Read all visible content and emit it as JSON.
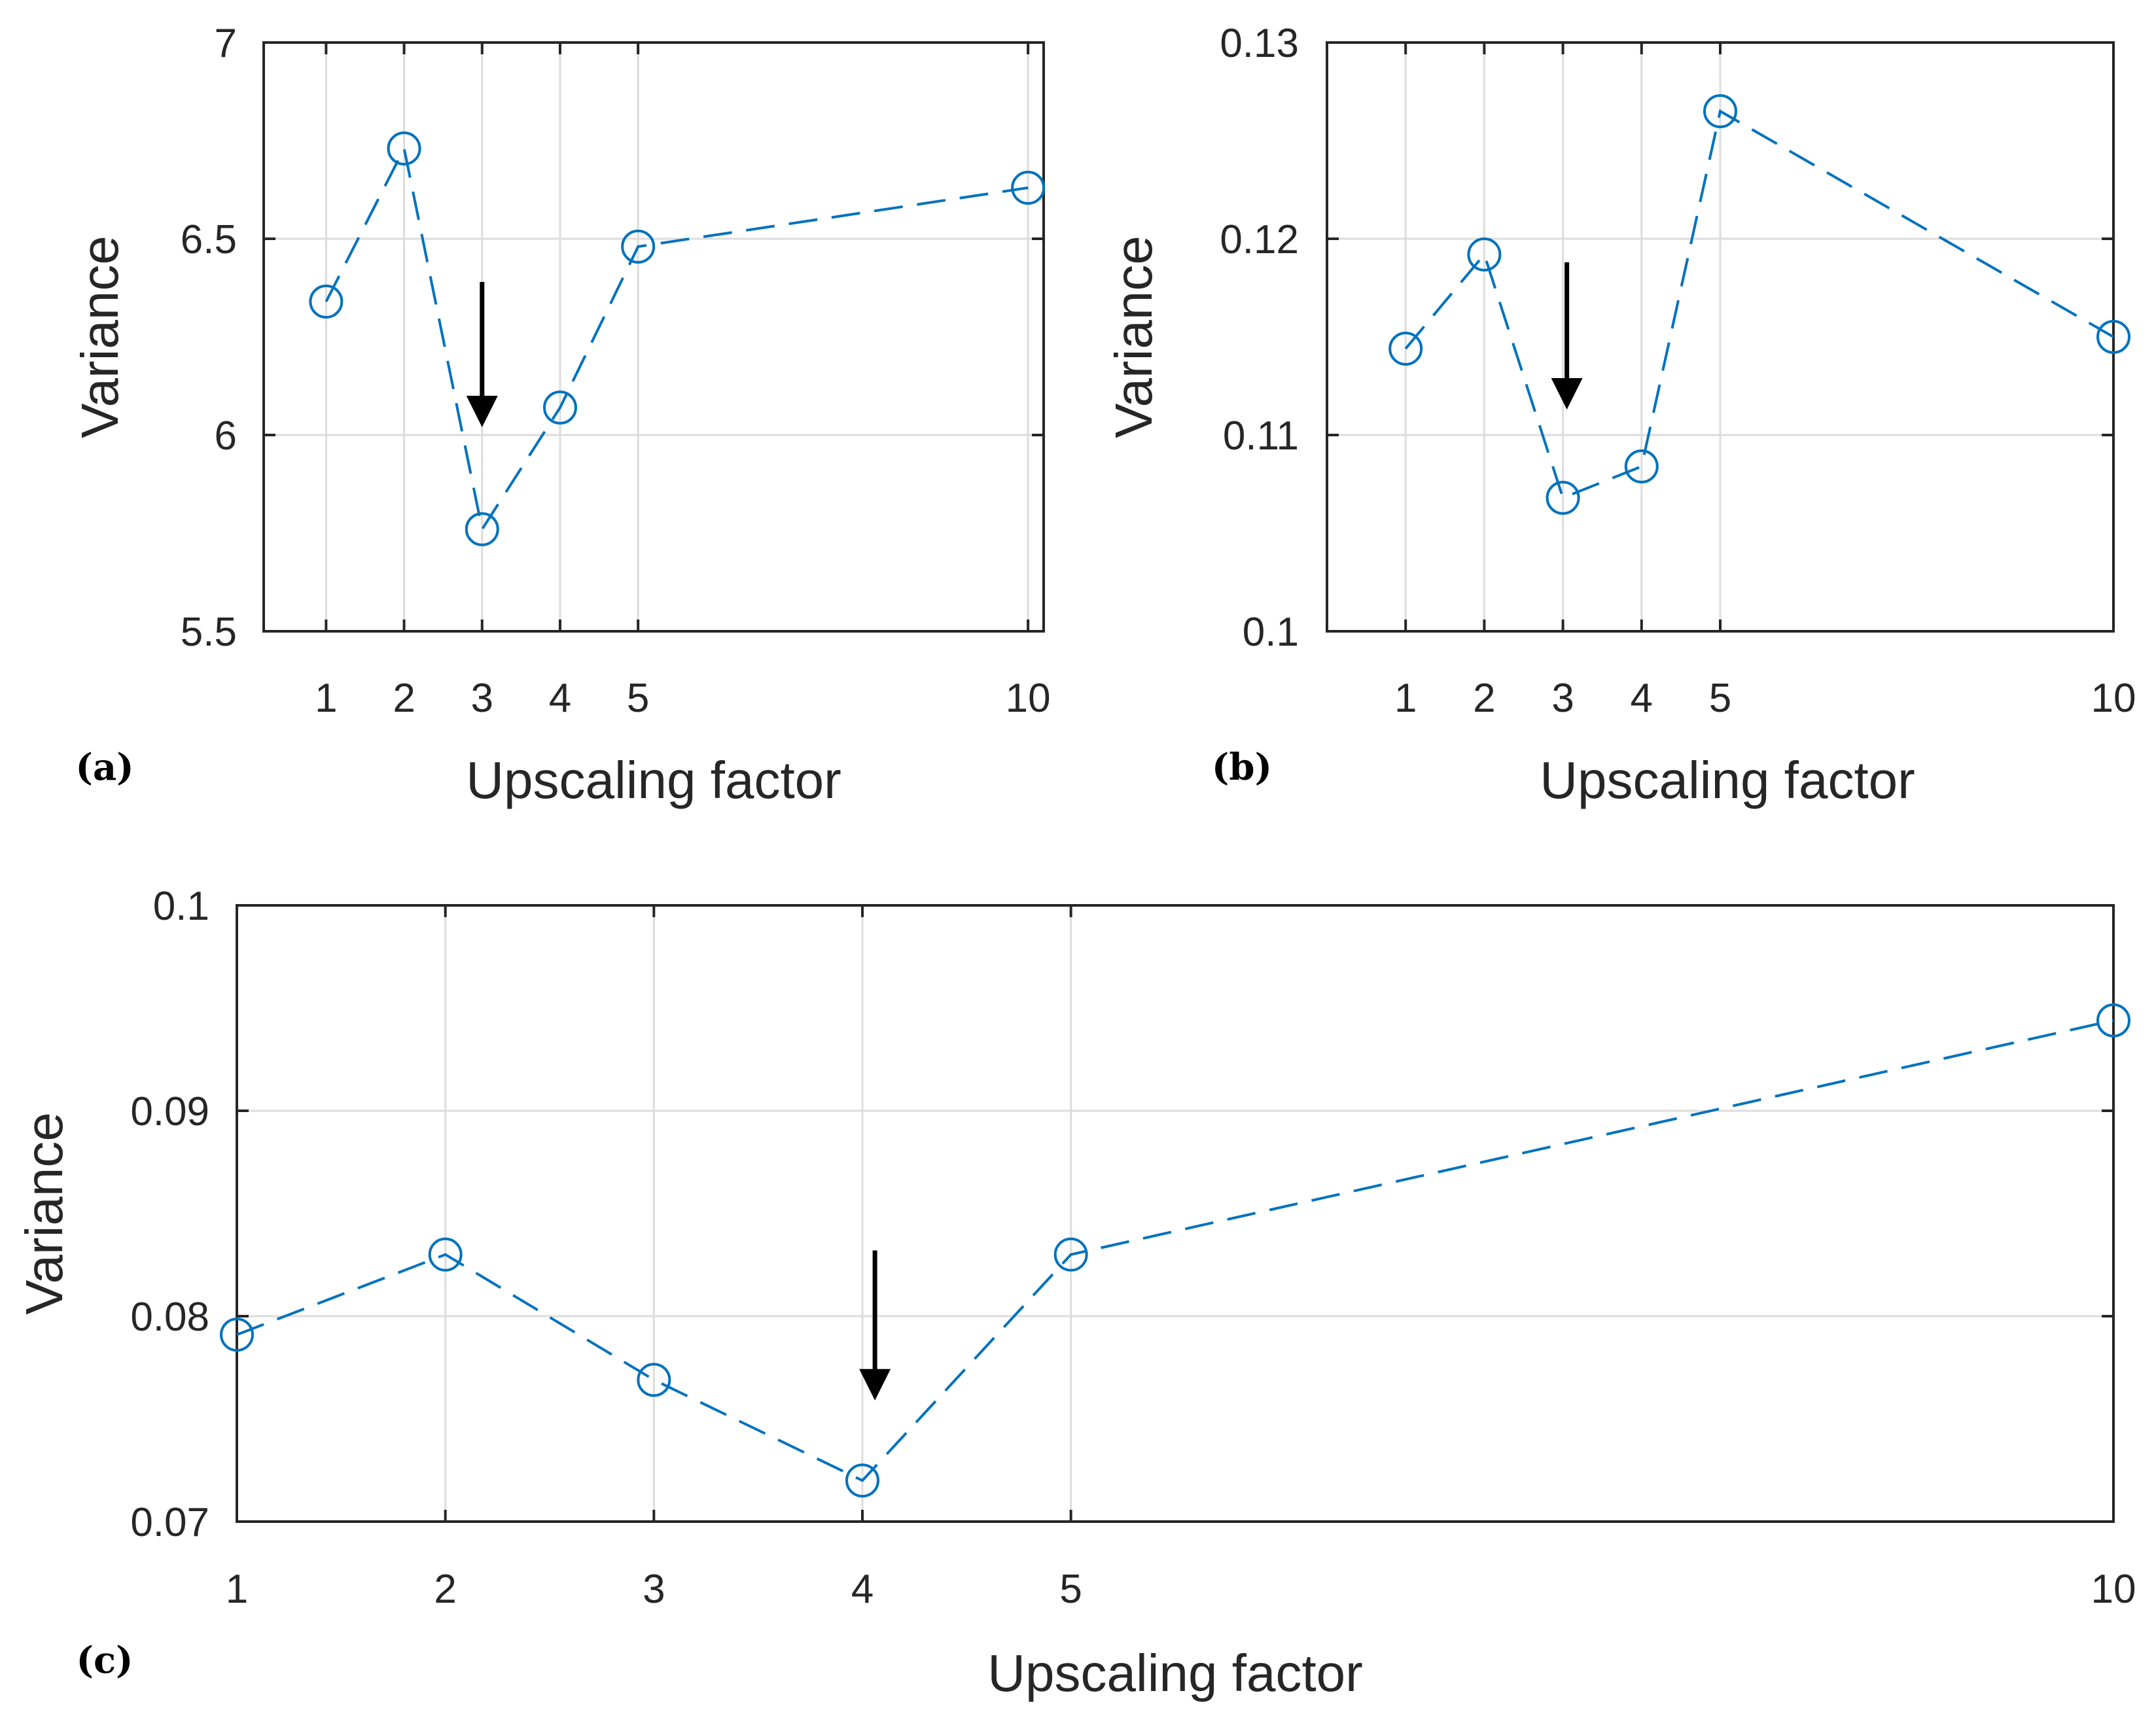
{
  "colors": {
    "series": "#0072bd",
    "axis": "#262626",
    "grid": "#dcdcdc",
    "arrow": "#000000"
  },
  "chart_data": [
    {
      "id": "a",
      "panel_label": "(a)",
      "type": "line",
      "x": [
        1,
        2,
        3,
        4,
        5,
        10
      ],
      "values": [
        6.34,
        6.73,
        5.76,
        6.07,
        6.48,
        6.63
      ],
      "xlabel": "Upscaling factor",
      "ylabel": "Variance",
      "xlim": [
        0.2,
        10.2
      ],
      "ylim": [
        5.5,
        7
      ],
      "xticks": [
        1,
        2,
        3,
        4,
        5,
        10
      ],
      "xtick_labels": [
        "1",
        "2",
        "3",
        "4",
        "5",
        "10"
      ],
      "yticks": [
        5.5,
        6,
        6.5,
        7
      ],
      "ytick_labels": [
        "5.5",
        "6",
        "6.5",
        "7"
      ],
      "grid": true,
      "marker": "circle",
      "line_style": "dashed",
      "annotation": {
        "type": "arrow",
        "points_to_x": 3,
        "y_start": 6.39,
        "y_end": 6.02
      }
    },
    {
      "id": "b",
      "panel_label": "(b)",
      "type": "line",
      "x": [
        1,
        2,
        3,
        4,
        5,
        10
      ],
      "values": [
        0.1144,
        0.1192,
        0.1068,
        0.1084,
        0.1265,
        0.115
      ],
      "xlabel": "Upscaling factor",
      "ylabel": "Variance",
      "xlim": [
        0,
        10
      ],
      "ylim": [
        0.1,
        0.13
      ],
      "xticks": [
        1,
        2,
        3,
        4,
        5,
        10
      ],
      "xtick_labels": [
        "1",
        "2",
        "3",
        "4",
        "5",
        "10"
      ],
      "yticks": [
        0.1,
        0.11,
        0.12,
        0.13
      ],
      "ytick_labels": [
        "0.1",
        "0.11",
        "0.12",
        "0.13"
      ],
      "grid": true,
      "marker": "circle",
      "line_style": "dashed",
      "annotation": {
        "type": "arrow",
        "points_to_x": 3.05,
        "y_start": 0.1188,
        "y_end": 0.1113
      }
    },
    {
      "id": "c",
      "panel_label": "(c)",
      "type": "line",
      "x": [
        1,
        2,
        3,
        4,
        5,
        10
      ],
      "values": [
        0.0791,
        0.083,
        0.0769,
        0.072,
        0.083,
        0.0944
      ],
      "xlabel": "Upscaling factor",
      "ylabel": "Variance",
      "xlim": [
        1,
        10
      ],
      "ylim": [
        0.07,
        0.1
      ],
      "xticks": [
        1,
        2,
        3,
        4,
        5,
        10
      ],
      "xtick_labels": [
        "1",
        "2",
        "3",
        "4",
        "5",
        "10"
      ],
      "yticks": [
        0.07,
        0.08,
        0.09,
        0.1
      ],
      "ytick_labels": [
        "0.07",
        "0.08",
        "0.09",
        "0.1"
      ],
      "grid": true,
      "marker": "circle",
      "line_style": "dashed",
      "annotation": {
        "type": "arrow",
        "points_to_x": 4.06,
        "y_start": 0.0832,
        "y_end": 0.0759
      }
    }
  ]
}
